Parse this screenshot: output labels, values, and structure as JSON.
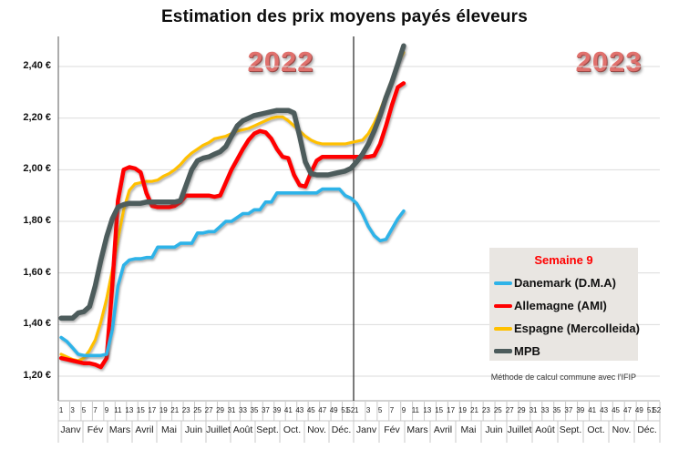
{
  "title": "Estimation des prix moyens payés éleveurs",
  "footnote": "Méthode de calcul commune avec l'IFIP",
  "legend": {
    "title": "Semaine 9",
    "items": [
      "Danemark (D.M.A)",
      "Allemagne (AMI)",
      "Espagne (Mercolleida)",
      "MPB"
    ]
  },
  "chart_data": {
    "type": "line",
    "title": "Estimation des prix moyens payés éleveurs",
    "x_unit": "semaine",
    "annotation_week": "Semaine 9",
    "grid": "horizontal",
    "legend_position": "right-middle",
    "divider_color": "#222222",
    "years": [
      {
        "label": "2022",
        "week_tick_labels": [
          "1",
          "3",
          "5",
          "7",
          "9",
          "11",
          "13",
          "15",
          "17",
          "19",
          "21",
          "23",
          "25",
          "27",
          "29",
          "31",
          "33",
          "35",
          "37",
          "39",
          "41",
          "43",
          "45",
          "47",
          "49",
          "51",
          "52"
        ],
        "months": [
          "Janv",
          "Fév",
          "Mars",
          "Avril",
          "Mai",
          "Juin",
          "Juillet",
          "Août",
          "Sept.",
          "Oct.",
          "Nov.",
          "Déc."
        ]
      },
      {
        "label": "2023",
        "week_tick_labels": [
          "1",
          "3",
          "5",
          "7",
          "9",
          "11",
          "13",
          "15",
          "17",
          "19",
          "21",
          "23",
          "25",
          "27",
          "29",
          "31",
          "33",
          "35",
          "37",
          "39",
          "41",
          "43",
          "45",
          "47",
          "49",
          "51",
          "52"
        ],
        "months": [
          "Janv",
          "Fév",
          "Mars",
          "Avril",
          "Mai",
          "Juin",
          "Juillet",
          "Août",
          "Sept.",
          "Oct.",
          "Nov.",
          "Déc."
        ]
      }
    ],
    "y_axis": {
      "unit": "€/kg",
      "min": 1.1,
      "max": 2.52,
      "ticks": [
        {
          "value": 1.2,
          "label": "1,20 €"
        },
        {
          "value": 1.4,
          "label": "1,40 €"
        },
        {
          "value": 1.6,
          "label": "1,60 €"
        },
        {
          "value": 1.8,
          "label": "1,80 €"
        },
        {
          "value": 2.0,
          "label": "2,00 €"
        },
        {
          "value": 2.2,
          "label": "2,20 €"
        },
        {
          "value": 2.4,
          "label": "2,40 €"
        }
      ]
    },
    "series": [
      {
        "name": "Espagne (Mercolleida)",
        "color": "#ffc000",
        "y2022": [
          1.285,
          1.275,
          1.265,
          1.26,
          1.27,
          1.3,
          1.34,
          1.41,
          1.5,
          1.61,
          1.73,
          1.845,
          1.92,
          1.945,
          1.95,
          1.955,
          1.955,
          1.96,
          1.975,
          1.985,
          2.0,
          2.02,
          2.045,
          2.065,
          2.08,
          2.095,
          2.105,
          2.12,
          2.125,
          2.13,
          2.14,
          2.15,
          2.155,
          2.16,
          2.17,
          2.18,
          2.19,
          2.2,
          2.205,
          2.205,
          2.19,
          2.17,
          2.15,
          2.13,
          2.115,
          2.105,
          2.1,
          2.1,
          2.1,
          2.1,
          2.1,
          2.105
        ],
        "y2023": [
          2.11,
          2.115,
          2.14,
          2.18,
          2.23,
          2.29,
          2.35,
          2.41,
          2.455
        ]
      },
      {
        "name": "Allemagne (AMI)",
        "color": "#ff0000",
        "y2022": [
          1.27,
          1.265,
          1.26,
          1.255,
          1.25,
          1.25,
          1.245,
          1.235,
          1.27,
          1.55,
          1.88,
          2.0,
          2.01,
          2.005,
          1.99,
          1.91,
          1.86,
          1.855,
          1.855,
          1.855,
          1.86,
          1.875,
          1.9,
          1.9,
          1.9,
          1.9,
          1.9,
          1.895,
          1.9,
          1.95,
          2.0,
          2.04,
          2.08,
          2.115,
          2.14,
          2.15,
          2.145,
          2.12,
          2.08,
          2.05,
          2.045,
          1.98,
          1.94,
          1.935,
          1.99,
          2.035,
          2.05,
          2.05,
          2.05,
          2.05,
          2.05,
          2.05
        ],
        "y2023": [
          2.05,
          2.05,
          2.05,
          2.055,
          2.1,
          2.17,
          2.25,
          2.32,
          2.335
        ]
      },
      {
        "name": "Danemark (D.M.A)",
        "color": "#2fb3e8",
        "y2022": [
          1.35,
          1.335,
          1.31,
          1.285,
          1.28,
          1.28,
          1.28,
          1.28,
          1.285,
          1.38,
          1.55,
          1.63,
          1.65,
          1.655,
          1.655,
          1.66,
          1.66,
          1.7,
          1.7,
          1.7,
          1.7,
          1.715,
          1.715,
          1.715,
          1.755,
          1.755,
          1.76,
          1.76,
          1.78,
          1.8,
          1.8,
          1.815,
          1.83,
          1.83,
          1.845,
          1.845,
          1.875,
          1.875,
          1.91,
          1.91,
          1.91,
          1.91,
          1.91,
          1.91,
          1.91,
          1.91,
          1.925,
          1.925,
          1.925,
          1.925,
          1.9,
          1.89
        ],
        "y2023": [
          1.87,
          1.83,
          1.78,
          1.745,
          1.725,
          1.73,
          1.77,
          1.81,
          1.84
        ]
      },
      {
        "name": "MPB",
        "color": "#4d5c5c",
        "y2022": [
          1.425,
          1.425,
          1.425,
          1.445,
          1.45,
          1.47,
          1.55,
          1.65,
          1.74,
          1.81,
          1.855,
          1.865,
          1.87,
          1.87,
          1.87,
          1.875,
          1.875,
          1.875,
          1.875,
          1.875,
          1.875,
          1.88,
          1.94,
          2.0,
          2.035,
          2.045,
          2.05,
          2.06,
          2.07,
          2.09,
          2.13,
          2.17,
          2.19,
          2.2,
          2.21,
          2.215,
          2.22,
          2.225,
          2.23,
          2.23,
          2.23,
          2.22,
          2.13,
          2.03,
          1.985,
          1.98,
          1.98,
          1.98,
          1.985,
          1.99,
          1.995,
          2.005
        ],
        "y2023": [
          2.03,
          2.06,
          2.1,
          2.15,
          2.21,
          2.28,
          2.34,
          2.41,
          2.48
        ]
      }
    ]
  }
}
